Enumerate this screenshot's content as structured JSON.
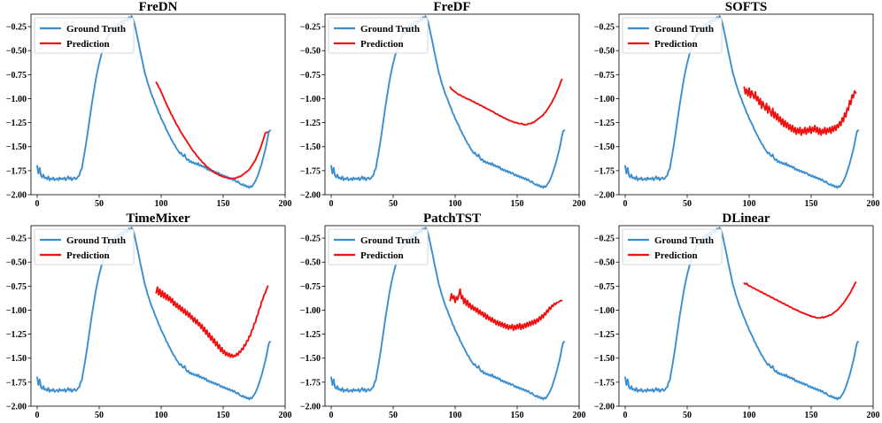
{
  "colors": {
    "ground_truth": "#3b8ed0",
    "prediction": "#f01010"
  },
  "chart_data": [
    {
      "type": "line",
      "title": "FreDN",
      "xlim": [
        -5,
        200
      ],
      "ylim": [
        -2.0,
        -0.12
      ],
      "xticks": [
        0,
        50,
        100,
        150,
        200
      ],
      "yticks": [
        -2.0,
        -1.75,
        -1.5,
        -1.25,
        -1.0,
        -0.75,
        -0.5,
        -0.25
      ],
      "legend": "upper-left",
      "series": [
        {
          "name": "Ground Truth",
          "color": "ground_truth",
          "x_start": 0,
          "values": [
            -1.7,
            -1.78,
            -1.72,
            -1.8,
            -1.82,
            -1.79,
            -1.83,
            -1.82,
            -1.84,
            -1.81,
            -1.85,
            -1.83,
            -1.84,
            -1.82,
            -1.85,
            -1.84,
            -1.83,
            -1.85,
            -1.82,
            -1.84,
            -1.83,
            -1.84,
            -1.82,
            -1.85,
            -1.83,
            -1.81,
            -1.84,
            -1.82,
            -1.85,
            -1.83,
            -1.82,
            -1.84,
            -1.83,
            -1.81,
            -1.8,
            -1.75,
            -1.73,
            -1.65,
            -1.58,
            -1.5,
            -1.42,
            -1.33,
            -1.24,
            -1.15,
            -1.06,
            -0.98,
            -0.9,
            -0.82,
            -0.75,
            -0.69,
            -0.63,
            -0.58,
            -0.53,
            -0.49,
            -0.45,
            -0.41,
            -0.38,
            -0.35,
            -0.33,
            -0.3,
            -0.32,
            -0.27,
            -0.29,
            -0.24,
            -0.26,
            -0.22,
            -0.24,
            -0.2,
            -0.19,
            -0.22,
            -0.18,
            -0.2,
            -0.17,
            -0.19,
            -0.15,
            -0.17,
            -0.14,
            -0.16,
            -0.19,
            -0.25,
            -0.31,
            -0.37,
            -0.43,
            -0.5,
            -0.56,
            -0.62,
            -0.68,
            -0.74,
            -0.78,
            -0.83,
            -0.87,
            -0.91,
            -0.95,
            -0.98,
            -1.01,
            -1.05,
            -1.08,
            -1.11,
            -1.15,
            -1.17,
            -1.21,
            -1.23,
            -1.26,
            -1.28,
            -1.32,
            -1.34,
            -1.37,
            -1.39,
            -1.42,
            -1.44,
            -1.47,
            -1.48,
            -1.51,
            -1.53,
            -1.55,
            -1.57,
            -1.56,
            -1.59,
            -1.6,
            -1.58,
            -1.62,
            -1.64,
            -1.63,
            -1.66,
            -1.65,
            -1.67,
            -1.66,
            -1.68,
            -1.67,
            -1.69,
            -1.67,
            -1.7,
            -1.69,
            -1.71,
            -1.7,
            -1.72,
            -1.71,
            -1.74,
            -1.73,
            -1.75,
            -1.74,
            -1.76,
            -1.75,
            -1.77,
            -1.76,
            -1.78,
            -1.77,
            -1.78,
            -1.8,
            -1.79,
            -1.81,
            -1.8,
            -1.82,
            -1.81,
            -1.83,
            -1.82,
            -1.84,
            -1.83,
            -1.85,
            -1.84,
            -1.86,
            -1.87,
            -1.86,
            -1.88,
            -1.89,
            -1.9,
            -1.89,
            -1.91,
            -1.9,
            -1.92,
            -1.91,
            -1.93,
            -1.91,
            -1.92,
            -1.9,
            -1.88,
            -1.86,
            -1.83,
            -1.8,
            -1.76,
            -1.72,
            -1.68,
            -1.63,
            -1.58,
            -1.53,
            -1.47,
            -1.4,
            -1.34,
            -1.33
          ]
        },
        {
          "name": "Prediction",
          "color": "prediction",
          "x_start": 96,
          "values": [
            -0.83,
            -0.85,
            -0.88,
            -0.9,
            -0.93,
            -0.96,
            -0.99,
            -1.02,
            -1.05,
            -1.08,
            -1.1,
            -1.13,
            -1.16,
            -1.18,
            -1.21,
            -1.23,
            -1.26,
            -1.28,
            -1.3,
            -1.33,
            -1.35,
            -1.37,
            -1.39,
            -1.41,
            -1.43,
            -1.45,
            -1.47,
            -1.49,
            -1.51,
            -1.53,
            -1.55,
            -1.56,
            -1.58,
            -1.6,
            -1.61,
            -1.63,
            -1.64,
            -1.66,
            -1.67,
            -1.68,
            -1.7,
            -1.71,
            -1.72,
            -1.73,
            -1.74,
            -1.75,
            -1.76,
            -1.77,
            -1.78,
            -1.78,
            -1.79,
            -1.8,
            -1.8,
            -1.81,
            -1.81,
            -1.82,
            -1.82,
            -1.82,
            -1.83,
            -1.83,
            -1.83,
            -1.83,
            -1.83,
            -1.83,
            -1.83,
            -1.82,
            -1.82,
            -1.81,
            -1.81,
            -1.8,
            -1.79,
            -1.78,
            -1.77,
            -1.76,
            -1.75,
            -1.74,
            -1.72,
            -1.7,
            -1.68,
            -1.66,
            -1.64,
            -1.61,
            -1.58,
            -1.55,
            -1.52,
            -1.48,
            -1.44,
            -1.4,
            -1.36,
            -1.35,
            -1.35
          ]
        }
      ]
    },
    {
      "type": "line",
      "title": "FreDF",
      "xlim": [
        -5,
        200
      ],
      "ylim": [
        -2.0,
        -0.12
      ],
      "xticks": [
        0,
        50,
        100,
        150,
        200
      ],
      "yticks": [
        -2.0,
        -1.75,
        -1.5,
        -1.25,
        -1.0,
        -0.75,
        -0.5,
        -0.25
      ],
      "legend": "upper-left",
      "series": [
        {
          "name": "Ground Truth",
          "color": "ground_truth",
          "x_start": 0,
          "values": "gt"
        },
        {
          "name": "Prediction",
          "color": "prediction",
          "x_start": 96,
          "values": [
            -0.88,
            -0.9,
            -0.91,
            -0.92,
            -0.93,
            -0.94,
            -0.95,
            -0.96,
            -0.96,
            -0.97,
            -0.98,
            -0.98,
            -0.99,
            -1.0,
            -1.0,
            -1.01,
            -1.01,
            -1.02,
            -1.03,
            -1.03,
            -1.04,
            -1.05,
            -1.05,
            -1.06,
            -1.07,
            -1.07,
            -1.08,
            -1.09,
            -1.09,
            -1.1,
            -1.11,
            -1.11,
            -1.12,
            -1.13,
            -1.13,
            -1.14,
            -1.15,
            -1.16,
            -1.16,
            -1.17,
            -1.18,
            -1.18,
            -1.19,
            -1.2,
            -1.2,
            -1.21,
            -1.22,
            -1.22,
            -1.23,
            -1.23,
            -1.24,
            -1.24,
            -1.25,
            -1.25,
            -1.25,
            -1.26,
            -1.26,
            -1.26,
            -1.26,
            -1.27,
            -1.27,
            -1.27,
            -1.27,
            -1.26,
            -1.26,
            -1.26,
            -1.25,
            -1.25,
            -1.24,
            -1.23,
            -1.22,
            -1.21,
            -1.2,
            -1.19,
            -1.18,
            -1.17,
            -1.15,
            -1.14,
            -1.12,
            -1.1,
            -1.08,
            -1.06,
            -1.04,
            -1.01,
            -0.99,
            -0.96,
            -0.93,
            -0.9,
            -0.87,
            -0.83,
            -0.8
          ]
        }
      ]
    },
    {
      "type": "line",
      "title": "SOFTS",
      "xlim": [
        -5,
        200
      ],
      "ylim": [
        -2.0,
        -0.12
      ],
      "xticks": [
        0,
        50,
        100,
        150,
        200
      ],
      "yticks": [
        -2.0,
        -1.75,
        -1.5,
        -1.25,
        -1.0,
        -0.75,
        -0.5,
        -0.25
      ],
      "legend": "upper-left",
      "series": [
        {
          "name": "Ground Truth",
          "color": "ground_truth",
          "x_start": 0,
          "values": "gt"
        },
        {
          "name": "Prediction",
          "color": "prediction",
          "x_start": 96,
          "values": [
            -0.88,
            -0.95,
            -0.9,
            -0.97,
            -0.89,
            -0.99,
            -0.92,
            -0.96,
            -1.0,
            -0.93,
            -1.02,
            -0.98,
            -1.06,
            -1.0,
            -1.1,
            -1.03,
            -1.08,
            -1.12,
            -1.05,
            -1.15,
            -1.08,
            -1.13,
            -1.18,
            -1.1,
            -1.2,
            -1.14,
            -1.22,
            -1.16,
            -1.24,
            -1.19,
            -1.27,
            -1.21,
            -1.29,
            -1.23,
            -1.3,
            -1.25,
            -1.32,
            -1.27,
            -1.34,
            -1.28,
            -1.35,
            -1.3,
            -1.37,
            -1.31,
            -1.36,
            -1.3,
            -1.38,
            -1.32,
            -1.36,
            -1.3,
            -1.37,
            -1.31,
            -1.35,
            -1.29,
            -1.36,
            -1.3,
            -1.34,
            -1.28,
            -1.35,
            -1.3,
            -1.37,
            -1.31,
            -1.38,
            -1.32,
            -1.36,
            -1.3,
            -1.37,
            -1.31,
            -1.35,
            -1.3,
            -1.36,
            -1.29,
            -1.34,
            -1.28,
            -1.33,
            -1.27,
            -1.3,
            -1.24,
            -1.28,
            -1.2,
            -1.24,
            -1.15,
            -1.19,
            -1.1,
            -1.12,
            -1.02,
            -1.06,
            -0.96,
            -0.99,
            -0.92,
            -0.94
          ]
        }
      ]
    },
    {
      "type": "line",
      "title": "TimeMixer",
      "xlim": [
        -5,
        200
      ],
      "ylim": [
        -2.0,
        -0.12
      ],
      "xticks": [
        0,
        50,
        100,
        150,
        200
      ],
      "yticks": [
        -2.0,
        -1.75,
        -1.5,
        -1.25,
        -1.0,
        -0.75,
        -0.5,
        -0.25
      ],
      "legend": "upper-left",
      "series": [
        {
          "name": "Ground Truth",
          "color": "ground_truth",
          "x_start": 0,
          "values": "gt"
        },
        {
          "name": "Prediction",
          "color": "prediction",
          "x_start": 96,
          "values": [
            -0.82,
            -0.76,
            -0.84,
            -0.78,
            -0.86,
            -0.8,
            -0.87,
            -0.82,
            -0.89,
            -0.84,
            -0.9,
            -0.86,
            -0.92,
            -0.88,
            -0.95,
            -0.91,
            -0.97,
            -0.93,
            -0.99,
            -0.95,
            -1.01,
            -0.97,
            -1.03,
            -0.99,
            -1.05,
            -1.01,
            -1.07,
            -1.03,
            -1.09,
            -1.06,
            -1.12,
            -1.08,
            -1.14,
            -1.1,
            -1.16,
            -1.13,
            -1.19,
            -1.15,
            -1.22,
            -1.18,
            -1.25,
            -1.21,
            -1.28,
            -1.24,
            -1.31,
            -1.27,
            -1.34,
            -1.3,
            -1.37,
            -1.33,
            -1.4,
            -1.36,
            -1.43,
            -1.39,
            -1.45,
            -1.42,
            -1.47,
            -1.44,
            -1.48,
            -1.45,
            -1.49,
            -1.46,
            -1.49,
            -1.47,
            -1.48,
            -1.45,
            -1.47,
            -1.43,
            -1.44,
            -1.4,
            -1.41,
            -1.36,
            -1.37,
            -1.32,
            -1.32,
            -1.27,
            -1.27,
            -1.21,
            -1.2,
            -1.14,
            -1.13,
            -1.07,
            -1.05,
            -0.99,
            -0.97,
            -0.91,
            -0.89,
            -0.84,
            -0.82,
            -0.78,
            -0.75
          ]
        }
      ]
    },
    {
      "type": "line",
      "title": "PatchTST",
      "xlim": [
        -5,
        200
      ],
      "ylim": [
        -2.0,
        -0.12
      ],
      "xticks": [
        0,
        50,
        100,
        150,
        200
      ],
      "yticks": [
        -2.0,
        -1.75,
        -1.5,
        -1.25,
        -1.0,
        -0.75,
        -0.5,
        -0.25
      ],
      "legend": "upper-left",
      "series": [
        {
          "name": "Ground Truth",
          "color": "ground_truth",
          "x_start": 0,
          "values": "gt"
        },
        {
          "name": "Prediction",
          "color": "prediction",
          "x_start": 96,
          "values": [
            -0.9,
            -0.83,
            -0.88,
            -0.85,
            -0.92,
            -0.86,
            -0.89,
            -0.84,
            -0.78,
            -0.88,
            -0.85,
            -0.93,
            -0.88,
            -0.95,
            -0.9,
            -0.97,
            -0.93,
            -0.99,
            -0.95,
            -1.0,
            -0.97,
            -1.02,
            -0.98,
            -1.04,
            -1.0,
            -1.05,
            -1.02,
            -1.07,
            -1.03,
            -1.09,
            -1.05,
            -1.1,
            -1.07,
            -1.12,
            -1.08,
            -1.13,
            -1.1,
            -1.15,
            -1.11,
            -1.16,
            -1.12,
            -1.17,
            -1.13,
            -1.18,
            -1.14,
            -1.19,
            -1.15,
            -1.2,
            -1.16,
            -1.19,
            -1.15,
            -1.21,
            -1.16,
            -1.2,
            -1.15,
            -1.19,
            -1.14,
            -1.2,
            -1.15,
            -1.19,
            -1.14,
            -1.18,
            -1.13,
            -1.17,
            -1.12,
            -1.16,
            -1.11,
            -1.15,
            -1.1,
            -1.14,
            -1.09,
            -1.12,
            -1.07,
            -1.1,
            -1.05,
            -1.08,
            -1.03,
            -1.05,
            -1.0,
            -1.02,
            -0.97,
            -0.99,
            -0.95,
            -0.96,
            -0.93,
            -0.94,
            -0.92,
            -0.92,
            -0.91,
            -0.9,
            -0.9
          ]
        }
      ]
    },
    {
      "type": "line",
      "title": "DLinear",
      "xlim": [
        -5,
        200
      ],
      "ylim": [
        -2.0,
        -0.12
      ],
      "xticks": [
        0,
        50,
        100,
        150,
        200
      ],
      "yticks": [
        -2.0,
        -1.75,
        -1.5,
        -1.25,
        -1.0,
        -0.75,
        -0.5,
        -0.25
      ],
      "legend": "upper-left",
      "series": [
        {
          "name": "Ground Truth",
          "color": "ground_truth",
          "x_start": 0,
          "values": "gt"
        },
        {
          "name": "Prediction",
          "color": "prediction",
          "x_start": 96,
          "values": [
            -0.72,
            -0.73,
            -0.72,
            -0.74,
            -0.75,
            -0.75,
            -0.76,
            -0.77,
            -0.77,
            -0.78,
            -0.79,
            -0.79,
            -0.8,
            -0.81,
            -0.81,
            -0.82,
            -0.83,
            -0.83,
            -0.84,
            -0.85,
            -0.85,
            -0.86,
            -0.87,
            -0.87,
            -0.88,
            -0.89,
            -0.89,
            -0.9,
            -0.91,
            -0.91,
            -0.92,
            -0.93,
            -0.93,
            -0.94,
            -0.95,
            -0.95,
            -0.96,
            -0.97,
            -0.97,
            -0.98,
            -0.99,
            -0.99,
            -1.0,
            -1.0,
            -1.01,
            -1.02,
            -1.02,
            -1.03,
            -1.03,
            -1.04,
            -1.04,
            -1.05,
            -1.05,
            -1.06,
            -1.06,
            -1.07,
            -1.07,
            -1.07,
            -1.08,
            -1.08,
            -1.08,
            -1.08,
            -1.08,
            -1.07,
            -1.08,
            -1.07,
            -1.07,
            -1.06,
            -1.06,
            -1.05,
            -1.05,
            -1.04,
            -1.03,
            -1.02,
            -1.01,
            -1.0,
            -0.99,
            -0.97,
            -0.96,
            -0.94,
            -0.93,
            -0.91,
            -0.89,
            -0.87,
            -0.85,
            -0.83,
            -0.81,
            -0.78,
            -0.76,
            -0.73,
            -0.71
          ]
        }
      ]
    }
  ]
}
